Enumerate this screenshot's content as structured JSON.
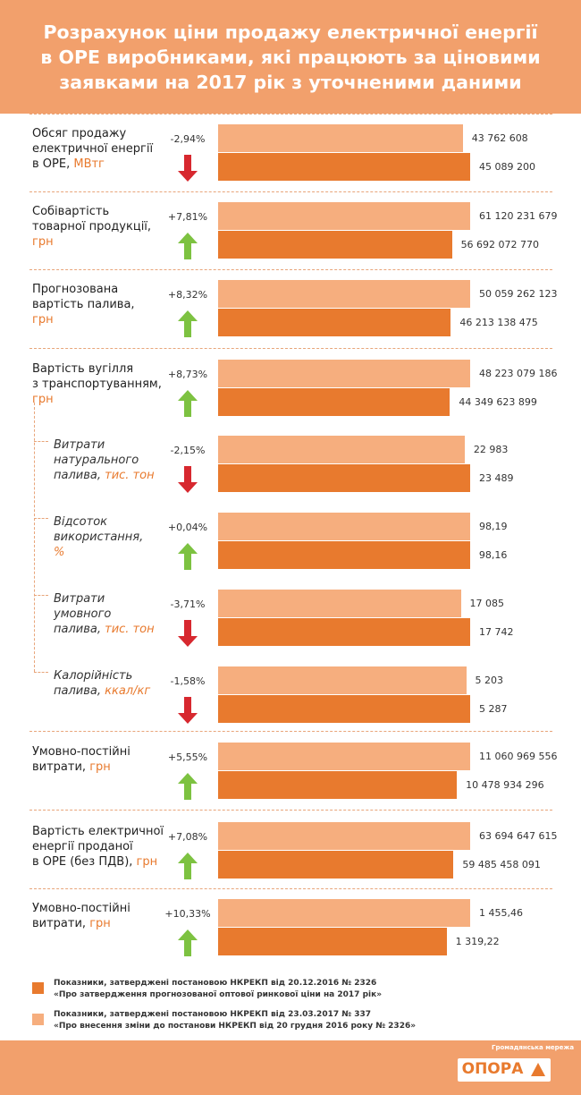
{
  "header": {
    "title_lines": [
      "Розрахунок ціни продажу електричної енергії",
      "в ОРЕ виробниками, які працюють за ціновими",
      "заявками на 2017 рік з уточненими даними"
    ]
  },
  "colors": {
    "header_bg": "#f2a06c",
    "bar_new": "#f6ae7e",
    "bar_old": "#e87a2e",
    "up_arrow": "#7dc241",
    "down_arrow": "#d7282f"
  },
  "chart_data": {
    "type": "bar",
    "orientation": "horizontal",
    "series_names": [
      "Показники, затверджені постановою НКРЕКП від 23.03.2017 № 337",
      "Показники, затверджені постановою НКРЕКП від 20.12.2016 № 2326"
    ],
    "rows": [
      {
        "label_lines": [
          "Обсяг продажу",
          "електричної енергії",
          "в ОРЕ,"
        ],
        "unit": "МВтг",
        "change": "-2,94%",
        "direction": "down",
        "new_value": 43762608,
        "old_value": 45089200,
        "new_label": "43 762 608",
        "old_label": "45 089 200",
        "sub": false
      },
      {
        "label_lines": [
          "Собівартість",
          "товарної продукції,"
        ],
        "unit": "грн",
        "change": "+7,81%",
        "direction": "up",
        "new_value": 61120231679,
        "old_value": 56692072770,
        "new_label": "61 120 231 679",
        "old_label": "56 692 072 770",
        "sub": false
      },
      {
        "label_lines": [
          "Прогнозована",
          "вартість палива,"
        ],
        "unit": "грн",
        "change": "+8,32%",
        "direction": "up",
        "new_value": 50059262123,
        "old_value": 46213138475,
        "new_label": "50 059 262 123",
        "old_label": "46 213 138 475",
        "sub": false
      },
      {
        "label_lines": [
          "Вартість вугілля",
          "з транспортуванням,"
        ],
        "unit": "грн",
        "change": "+8,73%",
        "direction": "up",
        "new_value": 48223079186,
        "old_value": 44349623899,
        "new_label": "48 223 079 186",
        "old_label": "44 349 623 899",
        "sub": false
      },
      {
        "label_lines": [
          "Витрати",
          "натурального",
          "палива,"
        ],
        "unit": "тис. тон",
        "change": "-2,15%",
        "direction": "down",
        "new_value": 22983,
        "old_value": 23489,
        "new_label": "22 983",
        "old_label": "23 489",
        "sub": true
      },
      {
        "label_lines": [
          "Відсоток",
          "використання,"
        ],
        "unit": "%",
        "change": "+0,04%",
        "direction": "up",
        "new_value": 98.19,
        "old_value": 98.16,
        "new_label": "98,19",
        "old_label": "98,16",
        "sub": true
      },
      {
        "label_lines": [
          "Витрати",
          "умовного",
          "палива,"
        ],
        "unit": "тис. тон",
        "change": "-3,71%",
        "direction": "down",
        "new_value": 17085,
        "old_value": 17742,
        "new_label": "17 085",
        "old_label": "17 742",
        "sub": true
      },
      {
        "label_lines": [
          "Калорійність",
          "палива,"
        ],
        "unit": "ккал/кг",
        "change": "-1,58%",
        "direction": "down",
        "new_value": 5203,
        "old_value": 5287,
        "new_label": "5 203",
        "old_label": "5 287",
        "sub": true
      },
      {
        "label_lines": [
          "Умовно-постійні",
          "витрати,"
        ],
        "unit": "грн",
        "change": "+5,55%",
        "direction": "up",
        "new_value": 11060969556,
        "old_value": 10478934296,
        "new_label": "11 060 969 556",
        "old_label": "10 478 934 296",
        "sub": false
      },
      {
        "label_lines": [
          "Вартість електричної",
          "енергії проданої",
          "в ОРЕ (без ПДВ),"
        ],
        "unit": "грн",
        "change": "+7,08%",
        "direction": "up",
        "new_value": 63694647615,
        "old_value": 59485458091,
        "new_label": "63 694 647 615",
        "old_label": "59 485 458 091",
        "sub": false
      },
      {
        "label_lines": [
          "Умовно-постійні",
          "витрати,"
        ],
        "unit": "грн",
        "change": "+10,33%",
        "direction": "up",
        "new_value": 1455.46,
        "old_value": 1319.22,
        "new_label": "1 455,46",
        "old_label": "1 319,22",
        "sub": false
      }
    ]
  },
  "legend": [
    {
      "line1": "Показники, затверджені постановою НКРЕКП від 20.12.2016 № 2326",
      "line2": "«Про затвердження прогнозованої оптової ринкової ціни на 2017 рік»",
      "color": "#e87a2e"
    },
    {
      "line1": "Показники, затверджені постановою НКРЕКП від 23.03.2017 № 337",
      "line2": "«Про внесення зміни до постанови НКРЕКП від 20 грудня 2016 року № 2326»",
      "color": "#f6ae7e"
    }
  ],
  "footer": {
    "tagline": "Громадянська мережа",
    "logo_name": "ОПОРА"
  }
}
